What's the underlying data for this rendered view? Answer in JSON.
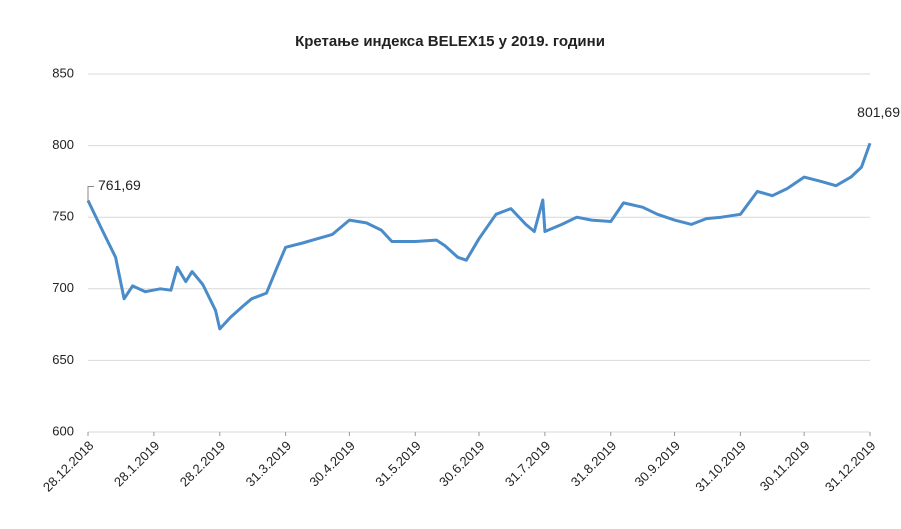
{
  "chart_data": {
    "type": "line",
    "title": "Кретање индекса BELEX15 у 2019. години",
    "x": [
      "28.12.2018",
      "04.01.2019",
      "10.01.2019",
      "14.01.2019",
      "18.01.2019",
      "24.01.2019",
      "31.01.2019",
      "05.02.2019",
      "08.02.2019",
      "12.02.2019",
      "15.02.2019",
      "20.02.2019",
      "26.02.2019",
      "28.02.2019",
      "05.03.2019",
      "11.03.2019",
      "15.03.2019",
      "22.03.2019",
      "27.03.2019",
      "31.03.2019",
      "08.04.2019",
      "15.04.2019",
      "22.04.2019",
      "30.04.2019",
      "08.05.2019",
      "15.05.2019",
      "20.05.2019",
      "31.05.2019",
      "10.06.2019",
      "14.06.2019",
      "20.06.2019",
      "24.06.2019",
      "30.06.2019",
      "08.07.2019",
      "15.07.2019",
      "22.07.2019",
      "26.07.2019",
      "30.07.2019",
      "31.07.2019",
      "08.08.2019",
      "15.08.2019",
      "22.08.2019",
      "31.08.2019",
      "06.09.2019",
      "15.09.2019",
      "22.09.2019",
      "30.09.2019",
      "08.10.2019",
      "15.10.2019",
      "22.10.2019",
      "31.10.2019",
      "08.11.2019",
      "15.11.2019",
      "22.11.2019",
      "30.11.2019",
      "08.12.2019",
      "15.12.2019",
      "22.12.2019",
      "27.12.2019",
      "31.12.2019"
    ],
    "series": [
      {
        "name": "BELEX15",
        "color": "#4a8bc9",
        "values": [
          761.69,
          740,
          722,
          693,
          702,
          698,
          700,
          699,
          715,
          705,
          712,
          703,
          685,
          672,
          680,
          688,
          693,
          697,
          715,
          729,
          732,
          735,
          738,
          748,
          746,
          741,
          733,
          733,
          734,
          730,
          722,
          720,
          735,
          752,
          756,
          745,
          740,
          762,
          740,
          745,
          750,
          748,
          747,
          760,
          757,
          752,
          748,
          745,
          749,
          750,
          752,
          768,
          765,
          770,
          778,
          775,
          772,
          778,
          785,
          801.69
        ]
      }
    ],
    "annotations": [
      {
        "x": "28.12.2018",
        "value": 761.69,
        "label": "761,69"
      },
      {
        "x": "31.12.2019",
        "value": 801.69,
        "label": "801,69"
      }
    ],
    "xlim": [
      "28.12.2018",
      "31.12.2019"
    ],
    "xticks": [
      "28.12.2018",
      "28.1.2019",
      "28.2.2019",
      "31.3.2019",
      "30.4.2019",
      "31.5.2019",
      "30.6.2019",
      "31.7.2019",
      "31.8.2019",
      "30.9.2019",
      "31.10.2019",
      "30.11.2019",
      "31.12.2019"
    ],
    "ylim": [
      600,
      850
    ],
    "yticks": [
      600,
      650,
      700,
      750,
      800,
      850
    ],
    "grid": true
  }
}
